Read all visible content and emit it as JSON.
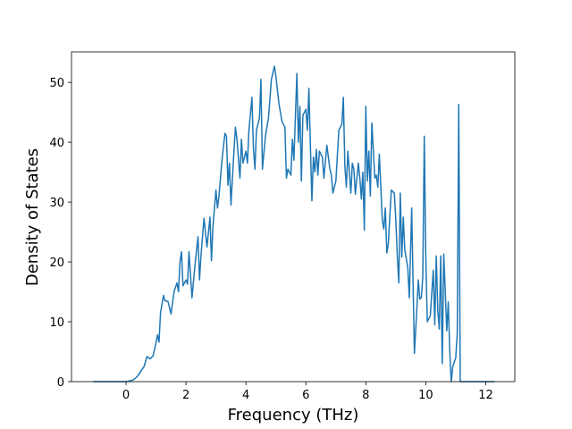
{
  "chart_data": {
    "type": "line",
    "xlabel": "Frequency (THz)",
    "ylabel": "Density of States",
    "x": [
      -1.1,
      -0.5,
      0,
      0.1,
      0.2,
      0.3,
      0.4,
      0.5,
      0.6,
      0.7,
      0.8,
      0.9,
      1.0,
      1.05,
      1.1,
      1.15,
      1.25,
      1.3,
      1.4,
      1.5,
      1.6,
      1.7,
      1.75,
      1.8,
      1.85,
      1.9,
      2.0,
      2.05,
      2.1,
      2.2,
      2.3,
      2.4,
      2.45,
      2.5,
      2.6,
      2.7,
      2.8,
      2.85,
      2.9,
      3.0,
      3.05,
      3.1,
      3.2,
      3.3,
      3.35,
      3.4,
      3.45,
      3.5,
      3.6,
      3.65,
      3.7,
      3.8,
      3.85,
      3.9,
      4.0,
      4.05,
      4.1,
      4.2,
      4.25,
      4.3,
      4.35,
      4.45,
      4.5,
      4.55,
      4.65,
      4.75,
      4.85,
      4.95,
      5.0,
      5.1,
      5.2,
      5.3,
      5.35,
      5.4,
      5.5,
      5.55,
      5.6,
      5.7,
      5.75,
      5.8,
      5.85,
      5.9,
      6.0,
      6.05,
      6.1,
      6.2,
      6.25,
      6.3,
      6.35,
      6.4,
      6.45,
      6.55,
      6.6,
      6.7,
      6.8,
      6.85,
      6.9,
      7.0,
      7.1,
      7.2,
      7.25,
      7.3,
      7.35,
      7.4,
      7.5,
      7.55,
      7.6,
      7.65,
      7.75,
      7.8,
      7.85,
      7.9,
      7.95,
      8.0,
      8.05,
      8.1,
      8.15,
      8.2,
      8.3,
      8.35,
      8.4,
      8.45,
      8.55,
      8.6,
      8.65,
      8.7,
      8.75,
      8.85,
      8.95,
      9.0,
      9.05,
      9.1,
      9.15,
      9.2,
      9.25,
      9.3,
      9.4,
      9.45,
      9.53,
      9.62,
      9.7,
      9.75,
      9.8,
      9.85,
      9.9,
      9.95,
      10.0,
      10.05,
      10.15,
      10.25,
      10.3,
      10.35,
      10.4,
      10.45,
      10.5,
      10.55,
      10.6,
      10.7,
      10.75,
      10.8,
      10.85,
      10.9,
      11.0,
      11.05,
      11.1,
      11.15,
      11.5,
      12.3
    ],
    "series": [
      {
        "color": "#1f77b4",
        "values": [
          0,
          0,
          0,
          0.1,
          0.2,
          0.5,
          1,
          1.8,
          2.5,
          4.2,
          3.8,
          4.3,
          6.5,
          7.8,
          6.6,
          11.5,
          14.4,
          13.5,
          13.4,
          11.3,
          15,
          16.5,
          15,
          20,
          21.7,
          16,
          17,
          16.3,
          21.7,
          14,
          19.5,
          24.2,
          17,
          21,
          27.3,
          22.5,
          27.5,
          20.2,
          26,
          32,
          29,
          31,
          37,
          41.5,
          41,
          32.8,
          36.5,
          29.5,
          38.5,
          42.5,
          40.5,
          34,
          40.5,
          36.5,
          38.5,
          36.5,
          42,
          47.5,
          39,
          35.5,
          42,
          44,
          50.5,
          35.5,
          41,
          44,
          50.5,
          52.7,
          51,
          46.5,
          43.5,
          42.5,
          34,
          35.5,
          34.5,
          40.5,
          37,
          51.5,
          40,
          46,
          33.5,
          44.5,
          45.5,
          42,
          49,
          30.2,
          37.5,
          35,
          38.8,
          34.5,
          38.5,
          37.5,
          34,
          39.5,
          35.5,
          34.5,
          31.5,
          33.5,
          42,
          43,
          47.5,
          36,
          32.5,
          38.5,
          31.5,
          36.5,
          35.5,
          31.3,
          36.5,
          34,
          30.5,
          35,
          25.3,
          46,
          33.5,
          38.5,
          31,
          43.2,
          34,
          34.5,
          32.5,
          38,
          27,
          25.5,
          29,
          21.5,
          23,
          32,
          31.5,
          27,
          21,
          16.5,
          31.5,
          20.8,
          27.5,
          22,
          19,
          14,
          29,
          4.7,
          12,
          17,
          13.8,
          14,
          17.5,
          41,
          21,
          10,
          11,
          18.6,
          9.5,
          21,
          12,
          8.8,
          21,
          3,
          21.3,
          8.5,
          13.3,
          5,
          0,
          2.5,
          4,
          8,
          46.3,
          0,
          0,
          0
        ]
      }
    ],
    "xlim": [
      -1.82,
      12.97
    ],
    "ylim": [
      0,
      55.1
    ],
    "xticks": [
      0,
      2,
      4,
      6,
      8,
      10,
      12
    ],
    "yticks": [
      0,
      10,
      20,
      30,
      40,
      50
    ]
  }
}
